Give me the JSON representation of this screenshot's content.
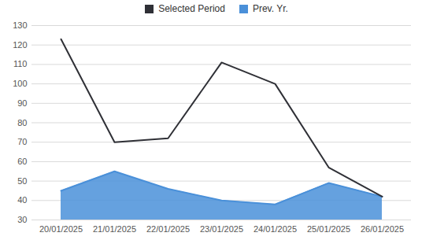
{
  "chart_data": {
    "type": "line",
    "x": [
      "20/01/2025",
      "21/01/2025",
      "22/01/2025",
      "23/01/2025",
      "24/01/2025",
      "25/01/2025",
      "26/01/2025"
    ],
    "series": [
      {
        "name": "Selected Period",
        "type": "line",
        "color": "#2f3036",
        "values": [
          123,
          70,
          72,
          111,
          100,
          57,
          42
        ]
      },
      {
        "name": "Prev. Yr.",
        "type": "area",
        "color": "#4a90d9",
        "values": [
          45,
          55,
          46,
          40,
          38,
          49,
          42
        ]
      }
    ],
    "ylim": [
      30,
      130
    ],
    "yticks": [
      30,
      40,
      50,
      60,
      70,
      80,
      90,
      100,
      110,
      120,
      130
    ],
    "grid": true,
    "legend": "top"
  }
}
